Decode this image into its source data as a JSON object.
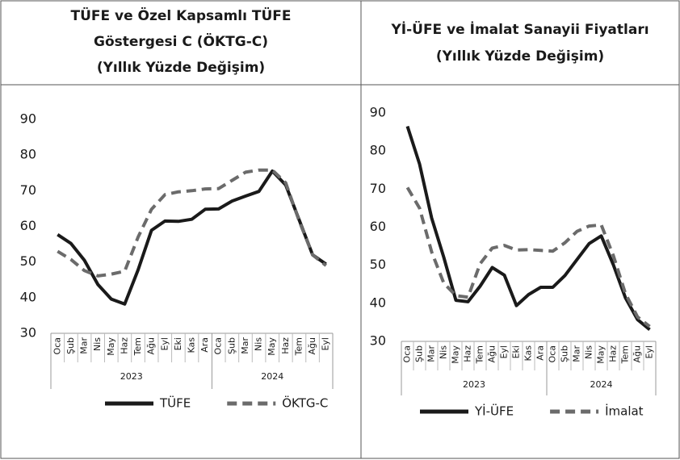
{
  "chart_data": [
    {
      "type": "line",
      "title": [
        "TÜFE ve Özel Kapsamlı TÜFE",
        "Göstergesi C (ÖKTG-C)",
        "(Yıllık Yüzde Değişim)"
      ],
      "groups": [
        {
          "label": "2023",
          "categories": [
            "Oca",
            "Şub",
            "Mar",
            "Nis",
            "May",
            "Haz",
            "Tem",
            "Ağu",
            "Eyl",
            "Eki",
            "Kas",
            "Ara"
          ]
        },
        {
          "label": "2024",
          "categories": [
            "Oca",
            "Şub",
            "Mar",
            "Nis",
            "May",
            "Haz",
            "Tem",
            "Ağu",
            "Eyl"
          ]
        }
      ],
      "series": [
        {
          "name": "TÜFE",
          "color": "#1a1a1a",
          "dash": false,
          "values": [
            57.7,
            55.2,
            50.5,
            43.7,
            39.6,
            38.2,
            47.8,
            58.9,
            61.5,
            61.4,
            62.0,
            64.8,
            64.9,
            67.1,
            68.5,
            69.8,
            75.5,
            71.6,
            61.8,
            52.0,
            49.4
          ]
        },
        {
          "name": "ÖKTG-C",
          "color": "#6b6b6b",
          "dash": true,
          "values": [
            53.0,
            50.7,
            47.6,
            46.1,
            46.6,
            47.4,
            57.0,
            64.8,
            68.9,
            69.7,
            70.0,
            70.5,
            70.6,
            72.9,
            75.2,
            75.8,
            75.8,
            72.2,
            61.5,
            52.0,
            49.0
          ]
        }
      ],
      "ylim": [
        30,
        90
      ],
      "yticks": [
        30,
        40,
        50,
        60,
        70,
        80,
        90
      ],
      "grid": false,
      "legend": "bottom"
    },
    {
      "type": "line",
      "title": [
        "Yİ-ÜFE ve İmalat Sanayii Fiyatları",
        "(Yıllık Yüzde Değişim)"
      ],
      "groups": [
        {
          "label": "2023",
          "categories": [
            "Oca",
            "Şub",
            "Mar",
            "Nis",
            "May",
            "Haz",
            "Tem",
            "Ağu",
            "Eyl",
            "Eki",
            "Kas",
            "Ara"
          ]
        },
        {
          "label": "2024",
          "categories": [
            "Oca",
            "Şub",
            "Mar",
            "Nis",
            "May",
            "Haz",
            "Tem",
            "Ağu",
            "Eyl"
          ]
        }
      ],
      "series": [
        {
          "name": "Yİ-ÜFE",
          "color": "#1a1a1a",
          "dash": false,
          "values": [
            86.5,
            76.6,
            62.4,
            52.1,
            40.8,
            40.4,
            44.5,
            49.4,
            47.4,
            39.4,
            42.3,
            44.2,
            44.2,
            47.3,
            51.5,
            55.7,
            57.7,
            50.1,
            41.4,
            35.7,
            33.1
          ]
        },
        {
          "name": "İmalat",
          "color": "#6b6b6b",
          "dash": true,
          "values": [
            70.4,
            65.0,
            53.5,
            45.3,
            42.0,
            41.6,
            50.4,
            54.5,
            55.2,
            54.0,
            54.1,
            53.9,
            53.7,
            55.9,
            58.9,
            60.3,
            60.6,
            52.5,
            42.5,
            36.4,
            33.9
          ]
        }
      ],
      "ylim": [
        30,
        90
      ],
      "yticks": [
        30,
        40,
        50,
        60,
        70,
        80,
        90
      ],
      "grid": false,
      "legend": "bottom"
    }
  ]
}
